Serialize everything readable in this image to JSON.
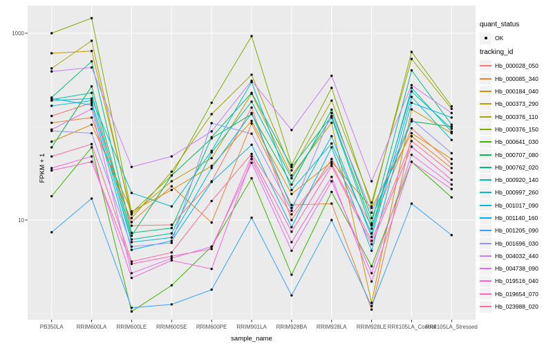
{
  "figure": {
    "y_axis": {
      "title": "FPKM + 1",
      "ticks": [
        {
          "label": "1000",
          "value": 1000
        },
        {
          "label": "10",
          "value": 10
        }
      ]
    },
    "x_axis": {
      "title": "sample_name"
    },
    "legend": {
      "quant_status": {
        "title": "quant_status",
        "items": [
          {
            "label": "OK",
            "glyph": "point"
          }
        ]
      },
      "tracking_id": {
        "title": "tracking_id"
      }
    },
    "colors": {
      "panel_bg": "#EBEBEB",
      "grid_major": "#FFFFFF",
      "grid_minor": "#F7F7F7",
      "tick_mark": "#333333",
      "tick_text": "#4D4D4D",
      "point": "#000000",
      "legend_key_bg": "#F2F2F2"
    }
  },
  "chart_data": {
    "type": "line",
    "title": "",
    "xlabel": "sample_name",
    "ylabel": "FPKM + 1",
    "y_scale": "log10",
    "ylim": [
      0.9,
      2000
    ],
    "y_breaks": [
      1000,
      10
    ],
    "y_minor_breaks": [
      100,
      1
    ],
    "grid": true,
    "legend_position": "right",
    "quant_status": "OK",
    "categories": [
      "PB350LA",
      "RRIM600LA",
      "RRIM600LE",
      "RRIM600SE",
      "RRIM600PE",
      "RRIM901LA",
      "RRIM928BA",
      "RRIM928LA",
      "RRIM928LE",
      "RRII105LA_Control",
      "RRII105LA_Stressed"
    ],
    "series": [
      {
        "name": "Hb_000028_050",
        "color": "#F8766D",
        "values": [
          130,
          180,
          8.7,
          8.9,
          26,
          160,
          10,
          45,
          8.8,
          96,
          40
        ]
      },
      {
        "name": "Hb_000085_340",
        "color": "#EA8331",
        "values": [
          110,
          125,
          9.5,
          23,
          9.4,
          108,
          14.5,
          15,
          1.1,
          79,
          36
        ]
      },
      {
        "name": "Hb_000184_040",
        "color": "#D89000",
        "values": [
          69,
          105,
          12.4,
          21,
          38,
          115,
          19,
          42,
          13.5,
          85,
          45
        ]
      },
      {
        "name": "Hb_000373_290",
        "color": "#C09B00",
        "values": [
          610,
          645,
          11.5,
          26,
          46,
          225,
          30,
          110,
          1.3,
          153,
          85
        ]
      },
      {
        "name": "Hb_000376_110",
        "color": "#A3A500",
        "values": [
          420,
          830,
          10.5,
          33,
          136,
          360,
          34,
          190,
          15.4,
          530,
          155
        ]
      },
      {
        "name": "Hb_000376_150",
        "color": "#7CAE00",
        "values": [
          1000,
          1450,
          12,
          30,
          180,
          930,
          39,
          260,
          14,
          630,
          165
        ]
      },
      {
        "name": "Hb_000641_030",
        "color": "#39B600",
        "values": [
          18,
          60,
          1.05,
          2.0,
          5.2,
          28,
          2.6,
          20,
          3.2,
          42,
          17.5
        ]
      },
      {
        "name": "Hb_000707_080",
        "color": "#00BB4E",
        "values": [
          60,
          270,
          6.8,
          30,
          75,
          136,
          24,
          152,
          10.5,
          114,
          100
        ]
      },
      {
        "name": "Hb_000762_020",
        "color": "#00BF7D",
        "values": [
          205,
          500,
          7.3,
          8.2,
          77,
          230,
          37,
          130,
          9.2,
          400,
          105
        ]
      },
      {
        "name": "Hb_000920_140",
        "color": "#00C1A3",
        "values": [
          195,
          230,
          6.2,
          7.2,
          53,
          185,
          28,
          125,
          8.1,
          238,
          95
        ]
      },
      {
        "name": "Hb_000997_260",
        "color": "#00BFC4",
        "values": [
          190,
          200,
          19.5,
          14,
          55,
          300,
          21,
          66,
          7.2,
          260,
          88
        ]
      },
      {
        "name": "Hb_001017_090",
        "color": "#00BAE0",
        "values": [
          167,
          190,
          5.8,
          6.5,
          36,
          140,
          13.5,
          79,
          6.6,
          208,
          72
        ]
      },
      {
        "name": "Hb_001140_160",
        "color": "#00B0F6",
        "values": [
          200,
          170,
          4.8,
          6.0,
          25.6,
          64,
          8.4,
          60,
          4.7,
          180,
          125
        ]
      },
      {
        "name": "Hb_001205_090",
        "color": "#35A2FF",
        "values": [
          7.4,
          17,
          1.15,
          1.25,
          1.8,
          10.6,
          1.56,
          10,
          1.2,
          15,
          6.9
        ]
      },
      {
        "name": "Hb_001696_030",
        "color": "#9590FF",
        "values": [
          90,
          85,
          5.2,
          5.7,
          109,
          84,
          12.6,
          140,
          12,
          120,
          52
        ]
      },
      {
        "name": "Hb_004032_440",
        "color": "#C77CFF",
        "values": [
          390,
          430,
          37,
          48,
          89,
          310,
          92,
          350,
          26,
          278,
          140
        ]
      },
      {
        "name": "Hb_004738_090",
        "color": "#E76BF3",
        "values": [
          93,
          155,
          2.7,
          3.9,
          5.2,
          41,
          4.7,
          26,
          2.7,
          50,
          24
        ]
      },
      {
        "name": "Hb_019516_040",
        "color": "#FA62DB",
        "values": [
          36,
          48,
          2.4,
          3.7,
          3.0,
          45,
          5.8,
          29,
          2.2,
          42,
          21.5
        ]
      },
      {
        "name": "Hb_019654_070",
        "color": "#FF62BC",
        "values": [
          34,
          42,
          3.4,
          4.1,
          4.9,
          48,
          7.5,
          38,
          5.5,
          61,
          27
        ]
      },
      {
        "name": "Hb_023988_020",
        "color": "#FF6A98",
        "values": [
          48,
          65,
          3.6,
          4.5,
          16,
          51,
          11.5,
          40,
          6.0,
          70,
          32
        ]
      }
    ]
  }
}
